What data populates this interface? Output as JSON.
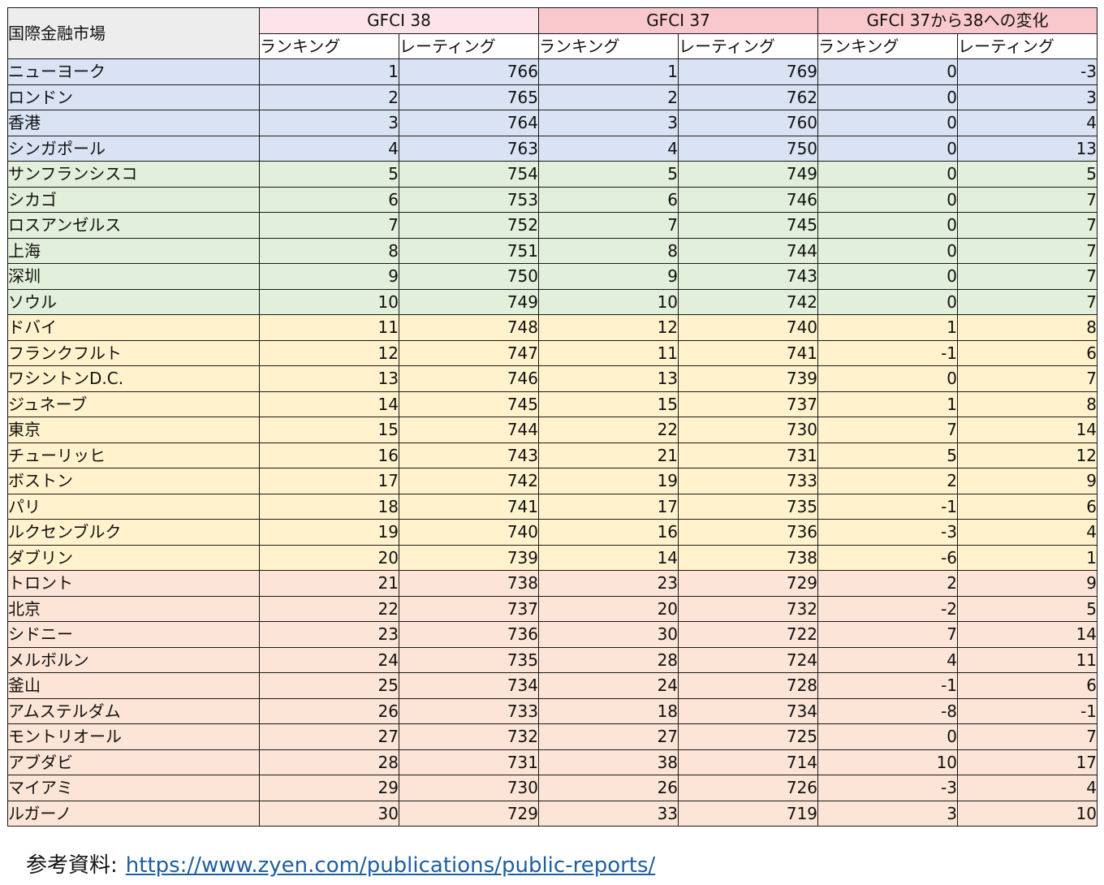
{
  "table": {
    "header": {
      "market": "国際金融市場",
      "groups": [
        "GFCI 38",
        "GFCI 37",
        "GFCI 37から38への変化"
      ],
      "sub": [
        "ランキング",
        "レーティング",
        "ランキング",
        "レーティング",
        "ランキング",
        "レーティング"
      ]
    },
    "band_colors": {
      "blue": "#dae3f3",
      "green": "#e2efda",
      "yellow": "#fff2cc",
      "pink": "#fce4d6"
    },
    "rows": [
      {
        "name": "ニューヨーク",
        "band": "blue",
        "r38": "1",
        "s38": "766",
        "r37": "1",
        "s37": "769",
        "dr": "0",
        "ds": "-3"
      },
      {
        "name": "ロンドン",
        "band": "blue",
        "r38": "2",
        "s38": "765",
        "r37": "2",
        "s37": "762",
        "dr": "0",
        "ds": "3"
      },
      {
        "name": "香港",
        "band": "blue",
        "r38": "3",
        "s38": "764",
        "r37": "3",
        "s37": "760",
        "dr": "0",
        "ds": "4"
      },
      {
        "name": "シンガポール",
        "band": "blue",
        "r38": "4",
        "s38": "763",
        "r37": "4",
        "s37": "750",
        "dr": "0",
        "ds": "13"
      },
      {
        "name": "サンフランシスコ",
        "band": "green",
        "r38": "5",
        "s38": "754",
        "r37": "5",
        "s37": "749",
        "dr": "0",
        "ds": "5"
      },
      {
        "name": "シカゴ",
        "band": "green",
        "r38": "6",
        "s38": "753",
        "r37": "6",
        "s37": "746",
        "dr": "0",
        "ds": "7"
      },
      {
        "name": "ロスアンゼルス",
        "band": "green",
        "r38": "7",
        "s38": "752",
        "r37": "7",
        "s37": "745",
        "dr": "0",
        "ds": "7"
      },
      {
        "name": "上海",
        "band": "green",
        "r38": "8",
        "s38": "751",
        "r37": "8",
        "s37": "744",
        "dr": "0",
        "ds": "7"
      },
      {
        "name": "深圳",
        "band": "green",
        "r38": "9",
        "s38": "750",
        "r37": "9",
        "s37": "743",
        "dr": "0",
        "ds": "7"
      },
      {
        "name": "ソウル",
        "band": "green",
        "r38": "10",
        "s38": "749",
        "r37": "10",
        "s37": "742",
        "dr": "0",
        "ds": "7"
      },
      {
        "name": "ドバイ",
        "band": "yellow",
        "r38": "11",
        "s38": "748",
        "r37": "12",
        "s37": "740",
        "dr": "1",
        "ds": "8"
      },
      {
        "name": "フランクフルト",
        "band": "yellow",
        "r38": "12",
        "s38": "747",
        "r37": "11",
        "s37": "741",
        "dr": "-1",
        "ds": "6"
      },
      {
        "name": "ワシントンD.C.",
        "band": "yellow",
        "r38": "13",
        "s38": "746",
        "r37": "13",
        "s37": "739",
        "dr": "0",
        "ds": "7"
      },
      {
        "name": "ジュネーブ",
        "band": "yellow",
        "r38": "14",
        "s38": "745",
        "r37": "15",
        "s37": "737",
        "dr": "1",
        "ds": "8"
      },
      {
        "name": "東京",
        "band": "yellow",
        "r38": "15",
        "s38": "744",
        "r37": "22",
        "s37": "730",
        "dr": "7",
        "ds": "14"
      },
      {
        "name": "チューリッヒ",
        "band": "yellow",
        "r38": "16",
        "s38": "743",
        "r37": "21",
        "s37": "731",
        "dr": "5",
        "ds": "12"
      },
      {
        "name": "ボストン",
        "band": "yellow",
        "r38": "17",
        "s38": "742",
        "r37": "19",
        "s37": "733",
        "dr": "2",
        "ds": "9"
      },
      {
        "name": "パリ",
        "band": "yellow",
        "r38": "18",
        "s38": "741",
        "r37": "17",
        "s37": "735",
        "dr": "-1",
        "ds": "6"
      },
      {
        "name": "ルクセンブルク",
        "band": "yellow",
        "r38": "19",
        "s38": "740",
        "r37": "16",
        "s37": "736",
        "dr": "-3",
        "ds": "4"
      },
      {
        "name": "ダブリン",
        "band": "yellow",
        "r38": "20",
        "s38": "739",
        "r37": "14",
        "s37": "738",
        "dr": "-6",
        "ds": "1"
      },
      {
        "name": "トロント",
        "band": "pink",
        "r38": "21",
        "s38": "738",
        "r37": "23",
        "s37": "729",
        "dr": "2",
        "ds": "9"
      },
      {
        "name": "北京",
        "band": "pink",
        "r38": "22",
        "s38": "737",
        "r37": "20",
        "s37": "732",
        "dr": "-2",
        "ds": "5"
      },
      {
        "name": "シドニー",
        "band": "pink",
        "r38": "23",
        "s38": "736",
        "r37": "30",
        "s37": "722",
        "dr": "7",
        "ds": "14"
      },
      {
        "name": "メルボルン",
        "band": "pink",
        "r38": "24",
        "s38": "735",
        "r37": "28",
        "s37": "724",
        "dr": "4",
        "ds": "11"
      },
      {
        "name": "釜山",
        "band": "pink",
        "r38": "25",
        "s38": "734",
        "r37": "24",
        "s37": "728",
        "dr": "-1",
        "ds": "6"
      },
      {
        "name": "アムステルダム",
        "band": "pink",
        "r38": "26",
        "s38": "733",
        "r37": "18",
        "s37": "734",
        "dr": "-8",
        "ds": "-1"
      },
      {
        "name": "モントリオール",
        "band": "pink",
        "r38": "27",
        "s38": "732",
        "r37": "27",
        "s37": "725",
        "dr": "0",
        "ds": "7"
      },
      {
        "name": "アブダビ",
        "band": "pink",
        "r38": "28",
        "s38": "731",
        "r37": "38",
        "s37": "714",
        "dr": "10",
        "ds": "17"
      },
      {
        "name": "マイアミ",
        "band": "pink",
        "r38": "29",
        "s38": "730",
        "r37": "26",
        "s37": "726",
        "dr": "-3",
        "ds": "4"
      },
      {
        "name": "ルガーノ",
        "band": "pink",
        "r38": "30",
        "s38": "729",
        "r37": "33",
        "s37": "719",
        "dr": "3",
        "ds": "10"
      }
    ]
  },
  "source": {
    "label": "参考資料:",
    "url": "https://www.zyen.com/publications/public-reports/"
  }
}
